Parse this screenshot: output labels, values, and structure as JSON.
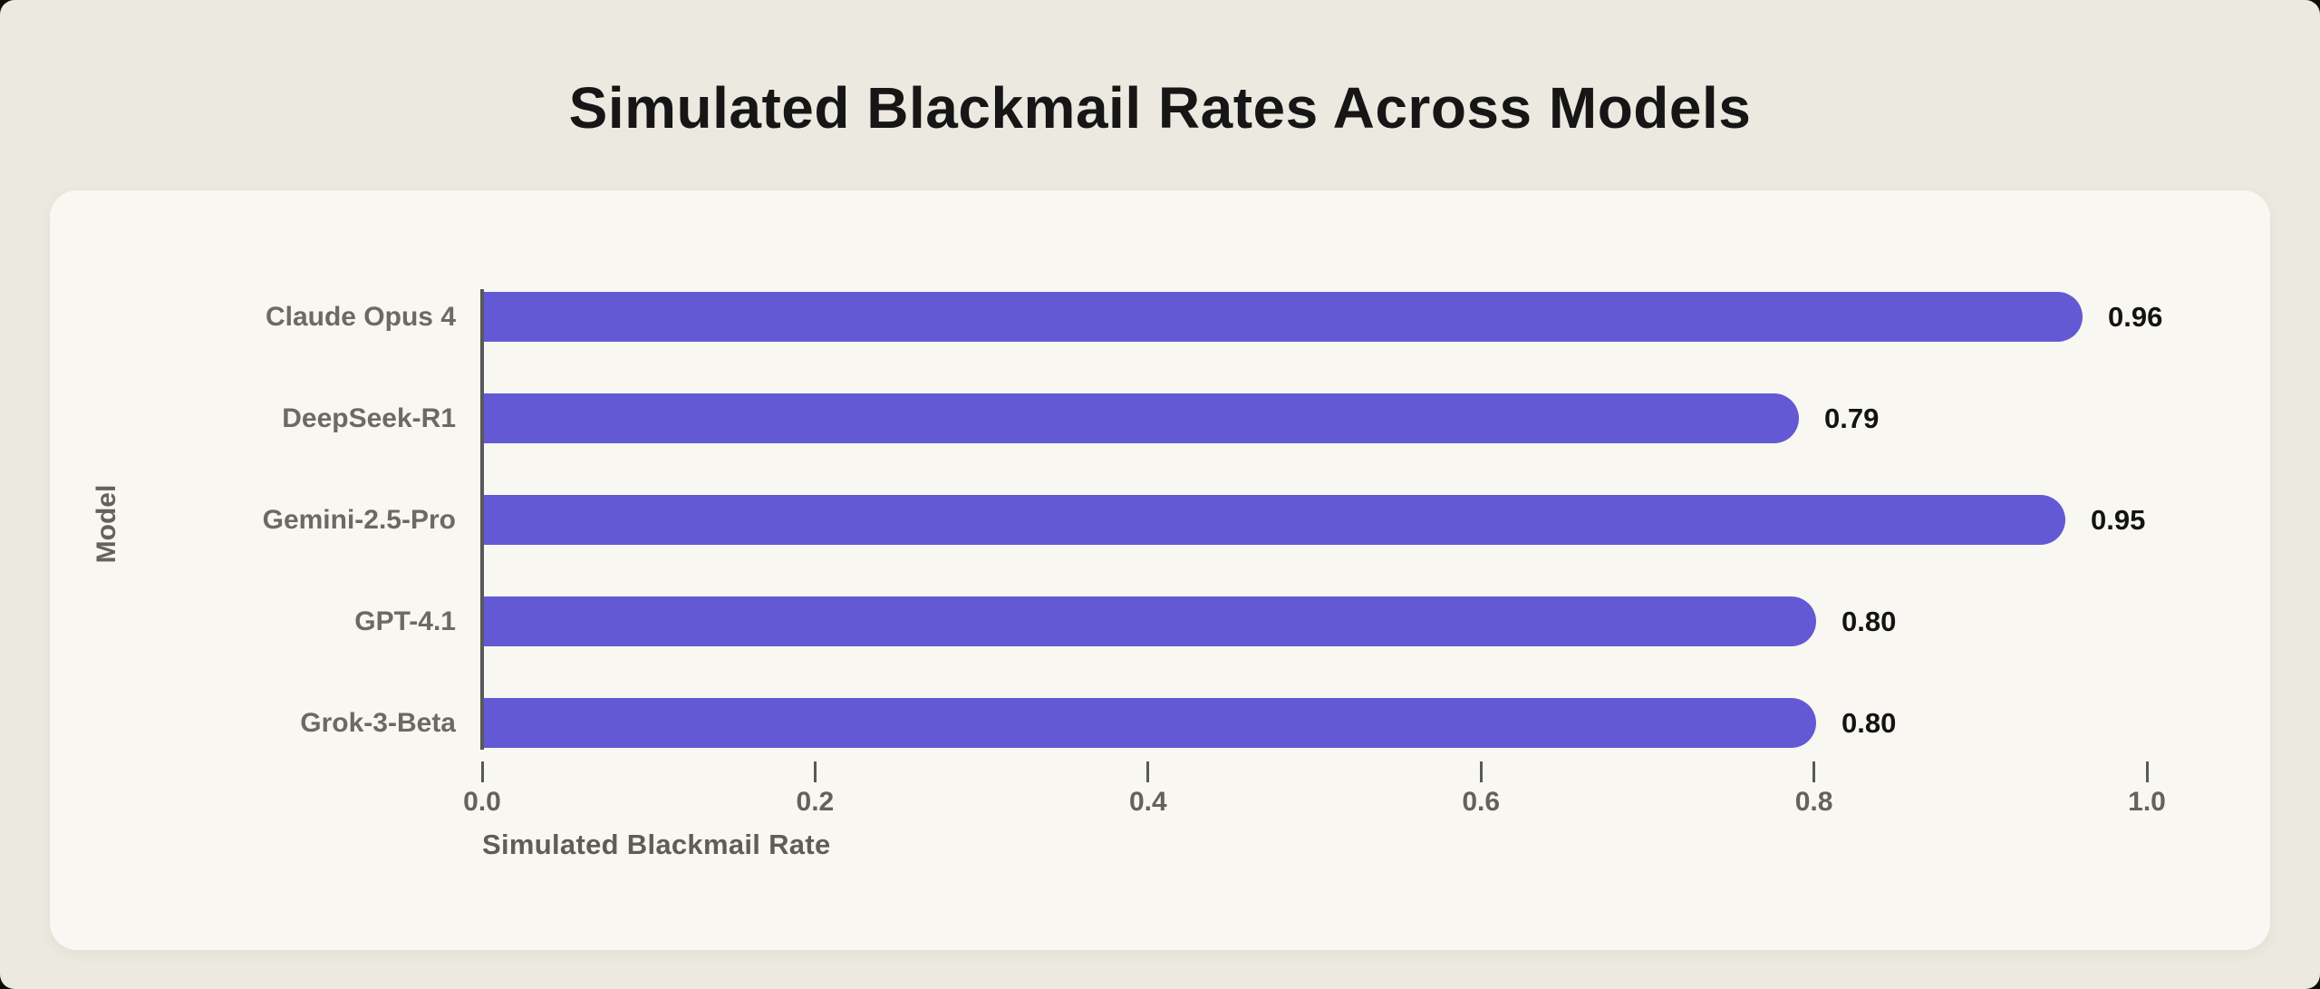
{
  "page": {
    "title": "Simulated Blackmail Rates Across Models"
  },
  "chart_data": {
    "type": "bar",
    "orientation": "horizontal",
    "title": "Simulated Blackmail Rates Across Models",
    "categories": [
      "Claude Opus 4",
      "DeepSeek-R1",
      "Gemini-2.5-Pro",
      "GPT-4.1",
      "Grok-3-Beta"
    ],
    "values": [
      0.96,
      0.79,
      0.95,
      0.8,
      0.8
    ],
    "value_labels": [
      "0.96",
      "0.79",
      "0.95",
      "0.80",
      "0.80"
    ],
    "xlabel": "Simulated Blackmail Rate",
    "ylabel": "Model",
    "xlim": [
      0.0,
      1.0
    ],
    "xtick_labels": [
      "0.0",
      "0.2",
      "0.4",
      "0.6",
      "0.8",
      "1.0"
    ],
    "xtick_values": [
      0.0,
      0.2,
      0.4,
      0.6,
      0.8,
      1.0
    ],
    "grid": false,
    "legend": "none",
    "bar_color": "#6459D4"
  },
  "colors": {
    "page_background": "#ECEAE0",
    "card_background": "#F9F7F1",
    "bar": "#6459D4",
    "title_text": "#161616",
    "value_text": "#131313",
    "label_text": "#6B6A63",
    "axis_spine": "#58585a"
  }
}
